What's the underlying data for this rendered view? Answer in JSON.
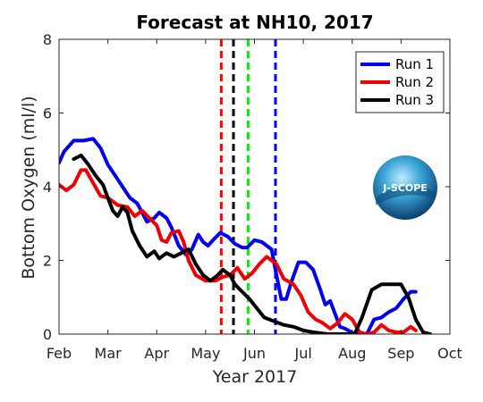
{
  "chart_data": {
    "type": "line",
    "title": "Forecast at NH10, 2017",
    "xlabel": "Year 2017",
    "ylabel": "Bottom Oxygen (ml/l)",
    "xlim": [
      2.0,
      10.0
    ],
    "ylim": [
      0,
      8
    ],
    "yticks": [
      0,
      2,
      4,
      6,
      8
    ],
    "xticks": [
      {
        "v": 2,
        "label": "Feb"
      },
      {
        "v": 3,
        "label": "Mar"
      },
      {
        "v": 4,
        "label": "Apr"
      },
      {
        "v": 5,
        "label": "May"
      },
      {
        "v": 6,
        "label": "Jun"
      },
      {
        "v": 7,
        "label": "Jul"
      },
      {
        "v": 8,
        "label": "Aug"
      },
      {
        "v": 9,
        "label": "Sep"
      },
      {
        "v": 10,
        "label": "Oct"
      }
    ],
    "legend_position": "top-right",
    "logo_text": "J-SCOPE",
    "vlines": [
      {
        "x": 5.32,
        "color": "#ff0000"
      },
      {
        "x": 5.57,
        "color": "#000000"
      },
      {
        "x": 5.87,
        "color": "#00ee00"
      },
      {
        "x": 6.43,
        "color": "#0000ff"
      }
    ],
    "series": [
      {
        "name": "Run 1",
        "color": "#0000ee",
        "points": [
          [
            2.0,
            4.65
          ],
          [
            2.1,
            4.95
          ],
          [
            2.3,
            5.25
          ],
          [
            2.5,
            5.25
          ],
          [
            2.7,
            5.3
          ],
          [
            2.85,
            5.05
          ],
          [
            3.0,
            4.6
          ],
          [
            3.2,
            4.2
          ],
          [
            3.45,
            3.7
          ],
          [
            3.6,
            3.55
          ],
          [
            3.7,
            3.3
          ],
          [
            3.8,
            3.05
          ],
          [
            3.95,
            3.15
          ],
          [
            4.05,
            3.3
          ],
          [
            4.2,
            3.15
          ],
          [
            4.3,
            2.9
          ],
          [
            4.45,
            2.4
          ],
          [
            4.6,
            2.15
          ],
          [
            4.72,
            2.3
          ],
          [
            4.85,
            2.7
          ],
          [
            4.95,
            2.5
          ],
          [
            5.05,
            2.4
          ],
          [
            5.15,
            2.55
          ],
          [
            5.3,
            2.75
          ],
          [
            5.45,
            2.65
          ],
          [
            5.6,
            2.45
          ],
          [
            5.75,
            2.35
          ],
          [
            5.85,
            2.35
          ],
          [
            6.0,
            2.55
          ],
          [
            6.15,
            2.5
          ],
          [
            6.35,
            2.3
          ],
          [
            6.45,
            1.6
          ],
          [
            6.55,
            0.95
          ],
          [
            6.65,
            0.95
          ],
          [
            6.75,
            1.4
          ],
          [
            6.9,
            1.95
          ],
          [
            7.05,
            1.95
          ],
          [
            7.2,
            1.75
          ],
          [
            7.35,
            1.2
          ],
          [
            7.45,
            0.8
          ],
          [
            7.55,
            0.9
          ],
          [
            7.65,
            0.55
          ],
          [
            7.75,
            0.2
          ],
          [
            7.85,
            0.15
          ],
          [
            8.05,
            0.0
          ],
          [
            8.3,
            0.0
          ],
          [
            8.45,
            0.4
          ],
          [
            8.6,
            0.45
          ],
          [
            8.75,
            0.6
          ],
          [
            8.9,
            0.7
          ],
          [
            9.05,
            0.95
          ],
          [
            9.2,
            1.15
          ],
          [
            9.3,
            1.15
          ]
        ]
      },
      {
        "name": "Run 2",
        "color": "#ee0000",
        "points": [
          [
            2.0,
            4.05
          ],
          [
            2.15,
            3.9
          ],
          [
            2.3,
            4.05
          ],
          [
            2.45,
            4.45
          ],
          [
            2.55,
            4.45
          ],
          [
            2.7,
            4.1
          ],
          [
            2.85,
            3.75
          ],
          [
            3.0,
            3.7
          ],
          [
            3.2,
            3.5
          ],
          [
            3.4,
            3.45
          ],
          [
            3.55,
            3.2
          ],
          [
            3.7,
            3.35
          ],
          [
            3.85,
            3.15
          ],
          [
            4.0,
            2.95
          ],
          [
            4.1,
            2.55
          ],
          [
            4.2,
            2.5
          ],
          [
            4.3,
            2.75
          ],
          [
            4.45,
            2.8
          ],
          [
            4.55,
            2.5
          ],
          [
            4.65,
            2.0
          ],
          [
            4.8,
            1.6
          ],
          [
            5.0,
            1.45
          ],
          [
            5.2,
            1.45
          ],
          [
            5.35,
            1.55
          ],
          [
            5.5,
            1.6
          ],
          [
            5.65,
            1.8
          ],
          [
            5.8,
            1.5
          ],
          [
            5.95,
            1.65
          ],
          [
            6.1,
            1.9
          ],
          [
            6.25,
            2.1
          ],
          [
            6.45,
            1.9
          ],
          [
            6.6,
            1.5
          ],
          [
            6.8,
            1.35
          ],
          [
            6.95,
            1.05
          ],
          [
            7.1,
            0.6
          ],
          [
            7.25,
            0.4
          ],
          [
            7.4,
            0.3
          ],
          [
            7.55,
            0.15
          ],
          [
            7.7,
            0.3
          ],
          [
            7.85,
            0.55
          ],
          [
            8.0,
            0.4
          ],
          [
            8.15,
            0.05
          ],
          [
            8.3,
            0.0
          ],
          [
            8.45,
            0.05
          ],
          [
            8.6,
            0.25
          ],
          [
            8.75,
            0.1
          ],
          [
            8.9,
            0.05
          ],
          [
            9.05,
            0.05
          ],
          [
            9.2,
            0.2
          ],
          [
            9.3,
            0.1
          ]
        ]
      },
      {
        "name": "Run 3",
        "color": "#000000",
        "points": [
          [
            2.3,
            4.75
          ],
          [
            2.45,
            4.85
          ],
          [
            2.6,
            4.6
          ],
          [
            2.75,
            4.3
          ],
          [
            2.9,
            4.05
          ],
          [
            3.0,
            3.7
          ],
          [
            3.1,
            3.35
          ],
          [
            3.2,
            3.2
          ],
          [
            3.3,
            3.45
          ],
          [
            3.4,
            3.3
          ],
          [
            3.5,
            2.8
          ],
          [
            3.65,
            2.4
          ],
          [
            3.8,
            2.1
          ],
          [
            3.95,
            2.25
          ],
          [
            4.05,
            2.05
          ],
          [
            4.2,
            2.2
          ],
          [
            4.35,
            2.1
          ],
          [
            4.5,
            2.2
          ],
          [
            4.65,
            2.3
          ],
          [
            4.8,
            1.9
          ],
          [
            4.95,
            1.6
          ],
          [
            5.1,
            1.45
          ],
          [
            5.25,
            1.6
          ],
          [
            5.35,
            1.75
          ],
          [
            5.5,
            1.6
          ],
          [
            5.6,
            1.35
          ],
          [
            5.75,
            1.15
          ],
          [
            5.9,
            0.95
          ],
          [
            6.05,
            0.7
          ],
          [
            6.2,
            0.45
          ],
          [
            6.4,
            0.35
          ],
          [
            6.6,
            0.25
          ],
          [
            6.8,
            0.2
          ],
          [
            7.0,
            0.1
          ],
          [
            7.2,
            0.05
          ],
          [
            7.5,
            0.0
          ],
          [
            7.8,
            0.0
          ],
          [
            8.05,
            0.0
          ],
          [
            8.2,
            0.45
          ],
          [
            8.4,
            1.2
          ],
          [
            8.6,
            1.35
          ],
          [
            8.8,
            1.35
          ],
          [
            9.0,
            1.35
          ],
          [
            9.15,
            1.0
          ],
          [
            9.3,
            0.4
          ],
          [
            9.45,
            0.05
          ],
          [
            9.6,
            0.0
          ]
        ]
      }
    ]
  }
}
